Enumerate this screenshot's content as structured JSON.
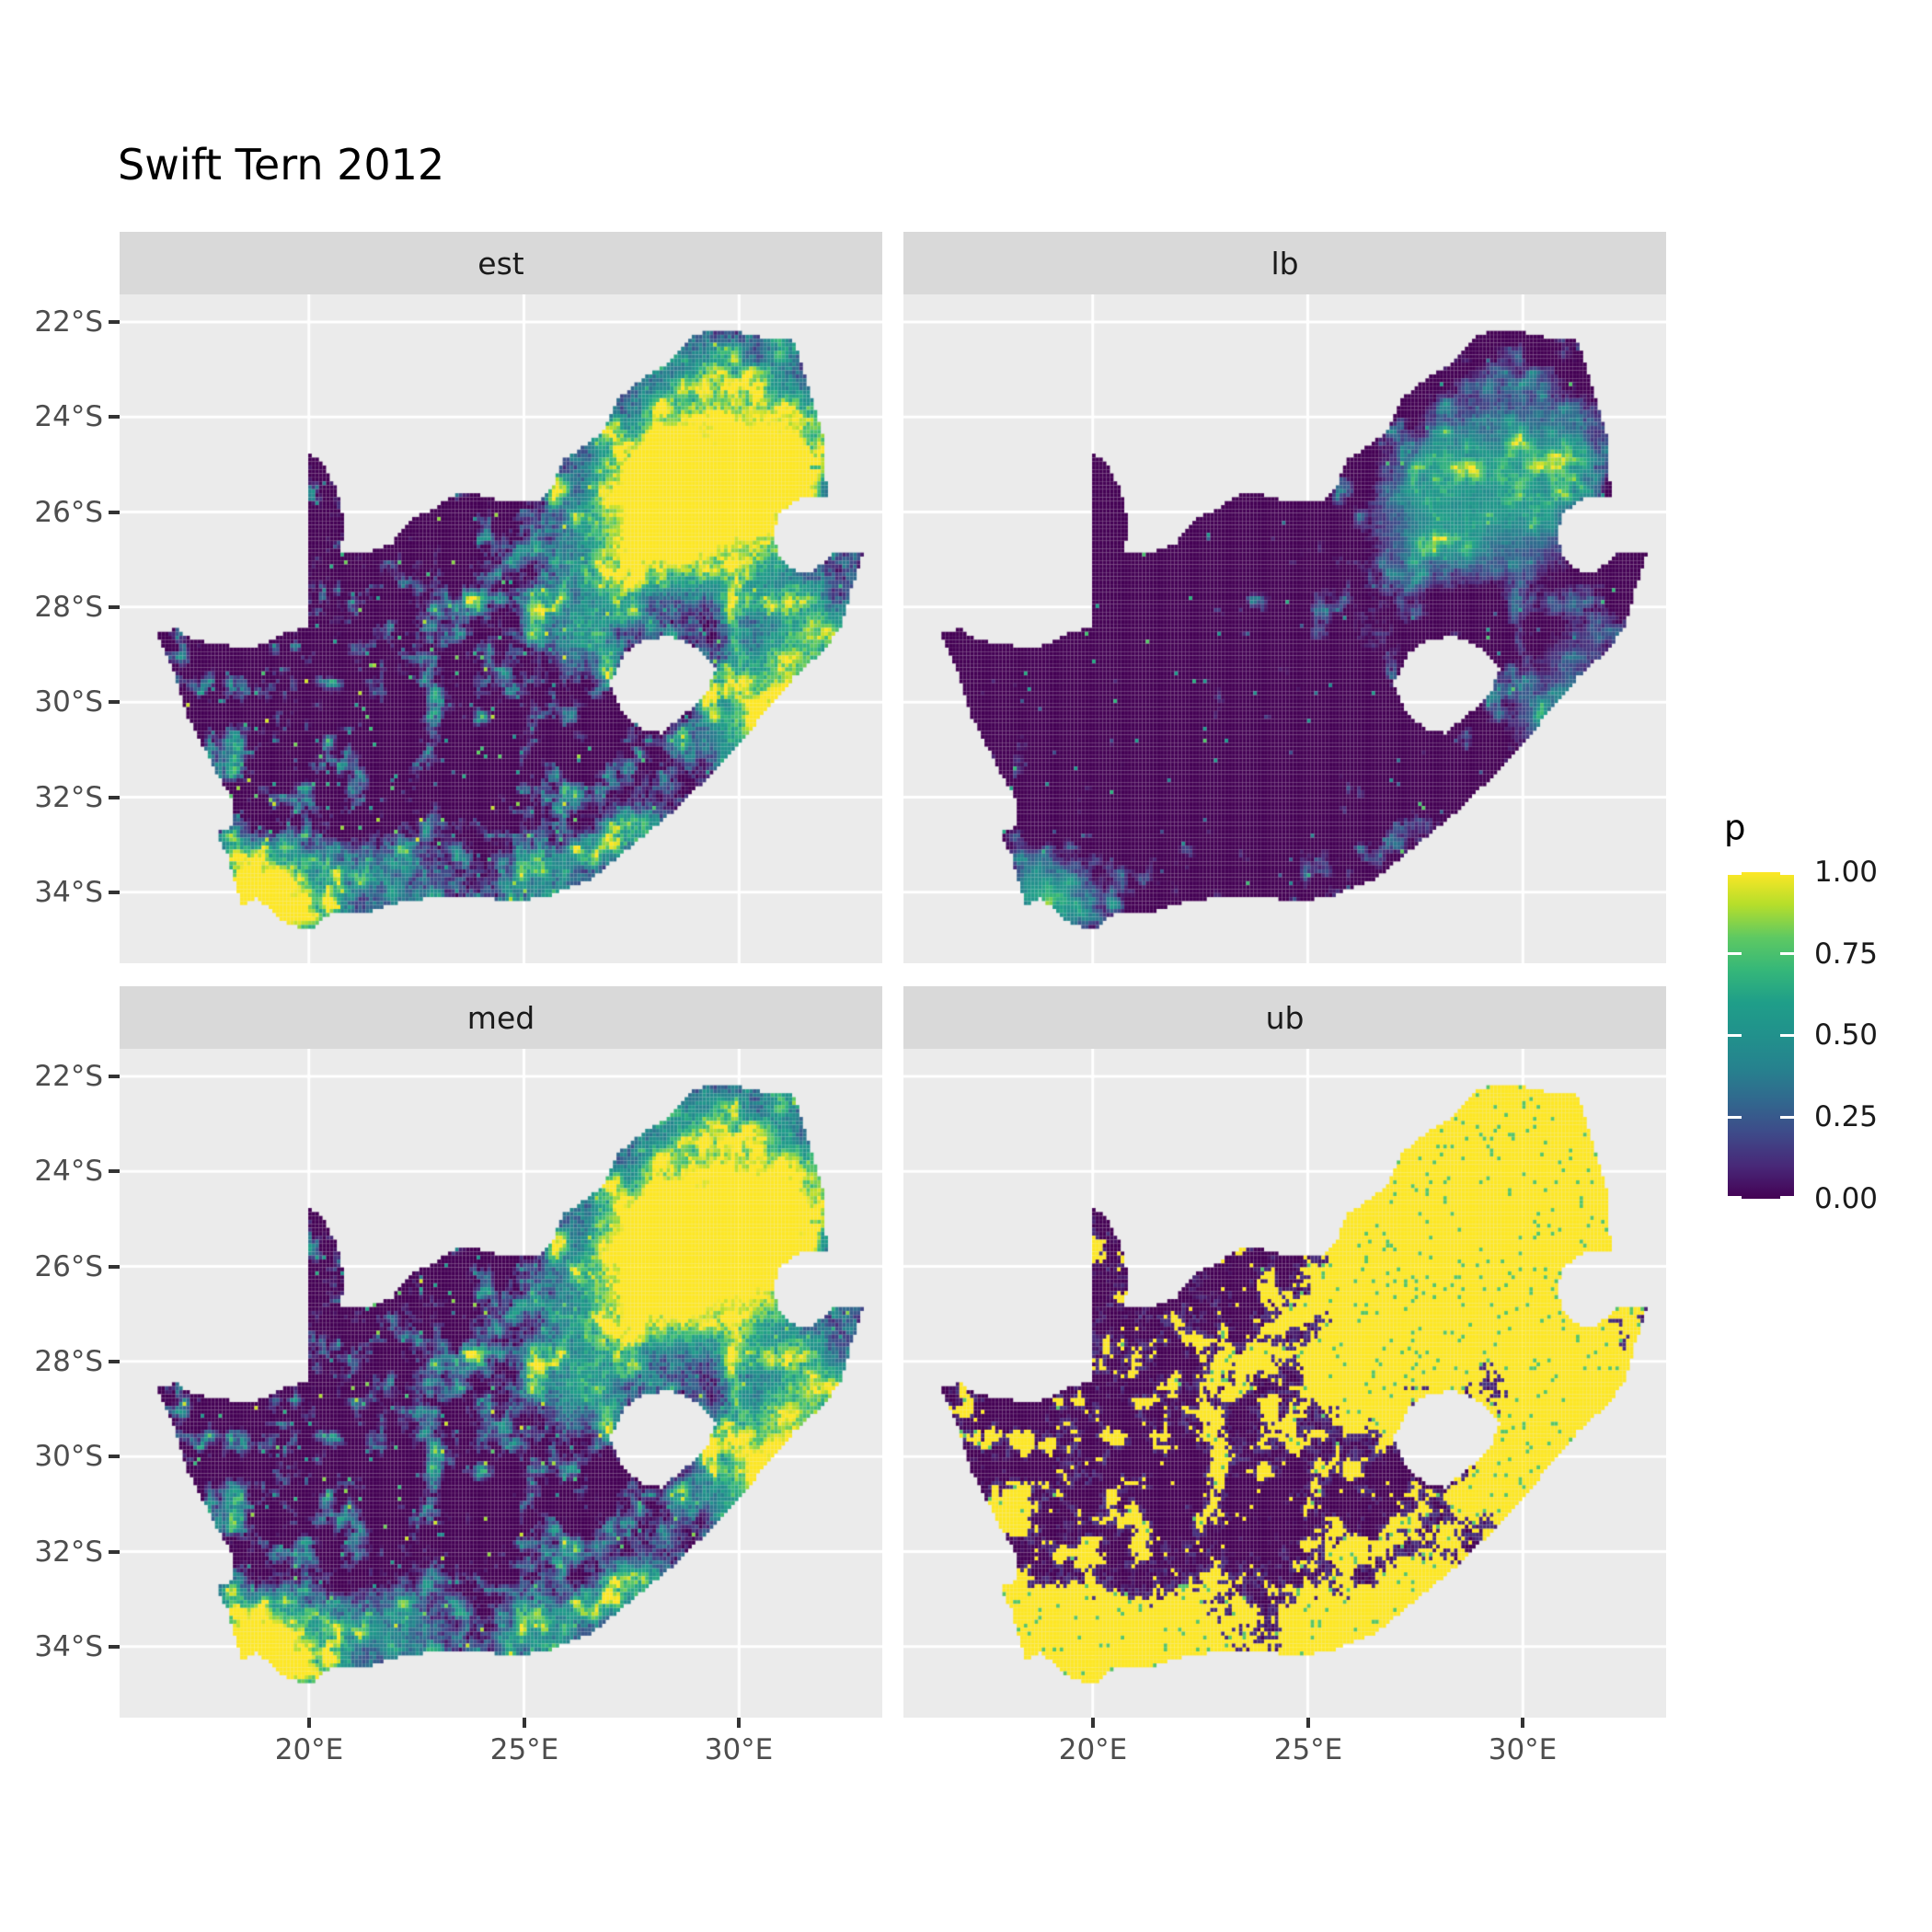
{
  "title": "Swift Tern 2012",
  "chart_data": {
    "type": "heatmap",
    "subtype": "faceted_raster_map",
    "region": "South Africa",
    "title": "Swift Tern 2012",
    "grid": "white major gridlines on gray panel",
    "facets": [
      {
        "label": "est",
        "render_params": {
          "mode": "linear",
          "gain": 2.1,
          "offset": -0.42,
          "jitter": 0.22,
          "jseed": 101,
          "speckle_rate": 0.015,
          "sseed": 110,
          "speckle_min": 0.25,
          "speckle_span": 0.7
        }
      },
      {
        "label": "lb",
        "render_params": {
          "mode": "linear",
          "gain": 1.4,
          "offset": -0.62,
          "jitter": 0.1,
          "jseed": 201,
          "speckle_rate": 0.007,
          "sseed": 210,
          "speckle_min": 0.2,
          "speckle_span": 0.6
        }
      },
      {
        "label": "med",
        "render_params": {
          "mode": "linear",
          "gain": 2.1,
          "offset": -0.36,
          "jitter": 0.22,
          "jseed": 301,
          "speckle_rate": 0.018,
          "sseed": 310,
          "speckle_min": 0.25,
          "speckle_span": 0.7
        }
      },
      {
        "label": "ub",
        "render_params": {
          "mode": "threshold",
          "threshold": 0.24,
          "jitter": 0.12,
          "jseed": 401,
          "speckle_rate": 0.012,
          "sseed": 410
        }
      }
    ],
    "x_axis": {
      "ticks": [
        {
          "value": 20,
          "label": "20°E"
        },
        {
          "value": 25,
          "label": "25°E"
        },
        {
          "value": 30,
          "label": "30°E"
        }
      ]
    },
    "y_axis": {
      "ticks": [
        {
          "value": 22,
          "label": "22°S"
        },
        {
          "value": 24,
          "label": "24°S"
        },
        {
          "value": 26,
          "label": "26°S"
        },
        {
          "value": 28,
          "label": "28°S"
        },
        {
          "value": 30,
          "label": "30°S"
        },
        {
          "value": 32,
          "label": "32°S"
        },
        {
          "value": 34,
          "label": "34°S"
        }
      ]
    },
    "extent": {
      "lon": [
        16.45,
        32.89
      ],
      "lat": [
        -34.83,
        -22.13
      ]
    },
    "legend": {
      "title": "p",
      "limits": [
        0,
        1
      ],
      "breaks": [
        {
          "value": 1.0,
          "label": "1.00"
        },
        {
          "value": 0.75,
          "label": "0.75"
        },
        {
          "value": 0.5,
          "label": "0.50"
        },
        {
          "value": 0.25,
          "label": "0.25"
        },
        {
          "value": 0.0,
          "label": "0.00"
        }
      ]
    },
    "colormap": {
      "name": "viridis",
      "stops": [
        {
          "t": 0.0,
          "hex": "#440154"
        },
        {
          "t": 0.1,
          "hex": "#482878"
        },
        {
          "t": 0.2,
          "hex": "#3E4A89"
        },
        {
          "t": 0.3,
          "hex": "#31688E"
        },
        {
          "t": 0.4,
          "hex": "#26828E"
        },
        {
          "t": 0.5,
          "hex": "#21918C"
        },
        {
          "t": 0.6,
          "hex": "#1F9E89"
        },
        {
          "t": 0.7,
          "hex": "#35B779"
        },
        {
          "t": 0.8,
          "hex": "#5EC962"
        },
        {
          "t": 0.9,
          "hex": "#B5DE2B"
        },
        {
          "t": 1.0,
          "hex": "#FDE725"
        }
      ]
    },
    "raster": {
      "cell_degrees": 0.083333,
      "origin_lon": 16.4,
      "origin_lat_south": 22.02,
      "n_lon": 199,
      "n_lat": 155
    },
    "map_outline": {
      "outer": [
        [
          16.45,
          -28.58
        ],
        [
          16.9,
          -28.45
        ],
        [
          17.35,
          -28.7
        ],
        [
          17.95,
          -28.77
        ],
        [
          18.55,
          -28.88
        ],
        [
          19.0,
          -28.75
        ],
        [
          19.55,
          -28.5
        ],
        [
          19.98,
          -28.45
        ],
        [
          19.98,
          -24.72
        ],
        [
          20.35,
          -25.0
        ],
        [
          20.65,
          -25.55
        ],
        [
          20.82,
          -26.15
        ],
        [
          20.75,
          -26.85
        ],
        [
          21.35,
          -26.85
        ],
        [
          21.95,
          -26.65
        ],
        [
          22.35,
          -26.15
        ],
        [
          22.85,
          -25.95
        ],
        [
          23.45,
          -25.6
        ],
        [
          24.0,
          -25.65
        ],
        [
          24.65,
          -25.8
        ],
        [
          25.35,
          -25.75
        ],
        [
          25.65,
          -25.5
        ],
        [
          25.9,
          -24.9
        ],
        [
          26.35,
          -24.65
        ],
        [
          26.85,
          -24.3
        ],
        [
          27.15,
          -23.65
        ],
        [
          27.75,
          -23.2
        ],
        [
          28.3,
          -22.9
        ],
        [
          29.0,
          -22.25
        ],
        [
          29.7,
          -22.15
        ],
        [
          30.4,
          -22.3
        ],
        [
          31.3,
          -22.4
        ],
        [
          31.55,
          -23.2
        ],
        [
          31.8,
          -23.9
        ],
        [
          31.95,
          -24.4
        ],
        [
          32.0,
          -25.1
        ],
        [
          32.05,
          -25.65
        ],
        [
          31.4,
          -25.73
        ],
        [
          30.95,
          -26.0
        ],
        [
          30.8,
          -26.4
        ],
        [
          30.9,
          -26.85
        ],
        [
          31.15,
          -27.2
        ],
        [
          31.6,
          -27.3
        ],
        [
          31.97,
          -27.05
        ],
        [
          32.15,
          -26.85
        ],
        [
          32.89,
          -26.86
        ],
        [
          32.6,
          -27.65
        ],
        [
          32.4,
          -28.35
        ],
        [
          32.0,
          -28.9
        ],
        [
          31.3,
          -29.45
        ],
        [
          30.65,
          -30.15
        ],
        [
          29.95,
          -30.95
        ],
        [
          29.2,
          -31.65
        ],
        [
          28.4,
          -32.35
        ],
        [
          27.55,
          -33.0
        ],
        [
          26.55,
          -33.75
        ],
        [
          25.9,
          -33.95
        ],
        [
          25.6,
          -34.08
        ],
        [
          24.8,
          -34.2
        ],
        [
          23.9,
          -34.1
        ],
        [
          23.0,
          -34.1
        ],
        [
          22.15,
          -34.2
        ],
        [
          21.25,
          -34.45
        ],
        [
          20.5,
          -34.45
        ],
        [
          19.98,
          -34.82
        ],
        [
          19.4,
          -34.62
        ],
        [
          19.1,
          -34.38
        ],
        [
          18.8,
          -34.1
        ],
        [
          18.45,
          -34.33
        ],
        [
          18.32,
          -33.9
        ],
        [
          18.1,
          -33.2
        ],
        [
          17.85,
          -32.75
        ],
        [
          18.25,
          -32.62
        ],
        [
          18.2,
          -32.0
        ],
        [
          17.9,
          -31.55
        ],
        [
          17.55,
          -30.95
        ],
        [
          17.15,
          -30.25
        ],
        [
          16.9,
          -29.45
        ],
        [
          16.45,
          -28.58
        ]
      ],
      "lesotho_hole": [
        [
          27.0,
          -29.6
        ],
        [
          27.35,
          -28.95
        ],
        [
          27.8,
          -28.68
        ],
        [
          28.4,
          -28.62
        ],
        [
          28.95,
          -28.82
        ],
        [
          29.45,
          -29.3
        ],
        [
          29.28,
          -29.78
        ],
        [
          28.8,
          -30.2
        ],
        [
          28.2,
          -30.65
        ],
        [
          27.7,
          -30.55
        ],
        [
          27.3,
          -30.2
        ],
        [
          27.0,
          -29.6
        ]
      ]
    },
    "density_centers": [
      [
        28.05,
        -26.1,
        1.25,
        0.6
      ],
      [
        29.6,
        -23.9,
        1.5,
        0.28
      ],
      [
        31.1,
        -24.9,
        1.0,
        0.3
      ],
      [
        30.95,
        -29.7,
        1.0,
        0.42
      ],
      [
        30.0,
        -30.75,
        0.8,
        0.3
      ],
      [
        32.0,
        -28.5,
        0.8,
        0.28
      ],
      [
        27.9,
        -32.9,
        0.9,
        0.3
      ],
      [
        25.7,
        -33.9,
        0.8,
        0.32
      ],
      [
        18.6,
        -33.9,
        0.75,
        0.55
      ],
      [
        19.4,
        -34.5,
        0.9,
        0.35
      ],
      [
        22.3,
        -34.0,
        1.2,
        0.28
      ],
      [
        26.2,
        -28.1,
        0.8,
        0.22
      ],
      [
        26.2,
        -29.1,
        0.6,
        0.18
      ],
      [
        17.9,
        -31.2,
        0.7,
        0.15
      ],
      [
        23.5,
        -28.3,
        1.5,
        0.08
      ],
      [
        30.5,
        -26.7,
        0.9,
        0.25
      ],
      [
        29.5,
        -24.8,
        2.2,
        0.18
      ]
    ]
  },
  "colors": {
    "page_bg": "#FFFFFF",
    "panel_bg": "#EBEBEB",
    "strip_bg": "#D9D9D9",
    "gridline": "#FFFFFF",
    "axis_text": "#4D4D4D",
    "strip_text": "#1A1A1A",
    "title_text": "#000000",
    "tick_mark": "#333333",
    "cell_lattice": "rgba(255,255,255,0.10)"
  }
}
